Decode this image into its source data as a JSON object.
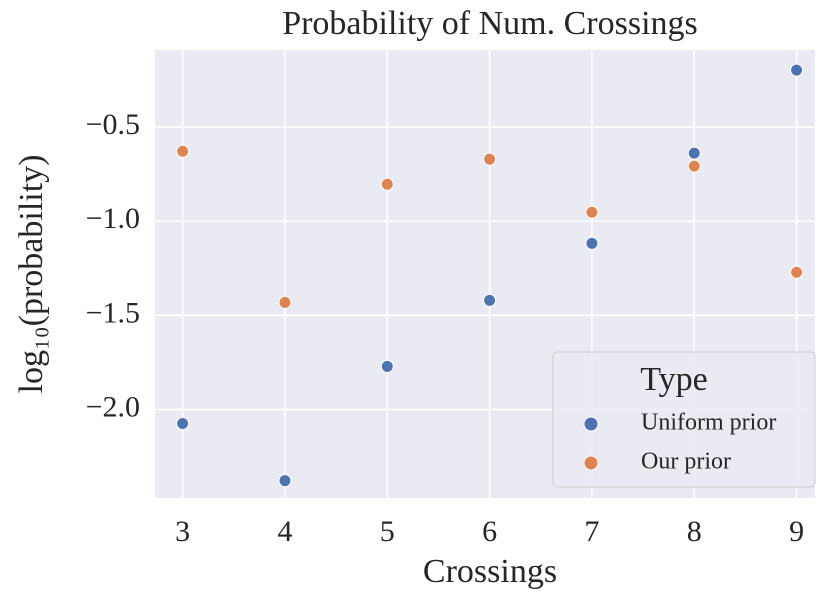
{
  "chart_data": {
    "type": "scatter",
    "title": "Probability of Num. Crossings",
    "x_label": "Crossings",
    "y_label": "log₁₀(probability)",
    "series": [
      {
        "name": "Uniform prior",
        "color": "#4c72b0",
        "x": [
          3,
          4,
          5,
          6,
          7,
          8,
          9
        ],
        "values": [
          -2.074,
          -2.378,
          -1.771,
          -1.42,
          -1.117,
          -0.638,
          -0.197
        ]
      },
      {
        "name": "Our prior",
        "color": "#dd8452",
        "x": [
          3,
          4,
          5,
          6,
          7,
          8,
          9
        ],
        "values": [
          -0.628,
          -1.431,
          -0.803,
          -0.67,
          -0.952,
          -0.707,
          -1.271
        ]
      }
    ],
    "xlim": [
      2.73,
      9.18
    ],
    "xticks": [
      3,
      4,
      5,
      6,
      7,
      8,
      9
    ],
    "ylim": [
      -2.47,
      -0.09
    ],
    "yticks": [
      {
        "value": -2.0,
        "label": "−2.0"
      },
      {
        "value": -1.5,
        "label": "−1.5"
      },
      {
        "value": -1.0,
        "label": "−1.0"
      },
      {
        "value": -0.5,
        "label": "−0.5"
      }
    ],
    "grid": true,
    "legend_title": "Type",
    "legend_position": "lower right"
  }
}
